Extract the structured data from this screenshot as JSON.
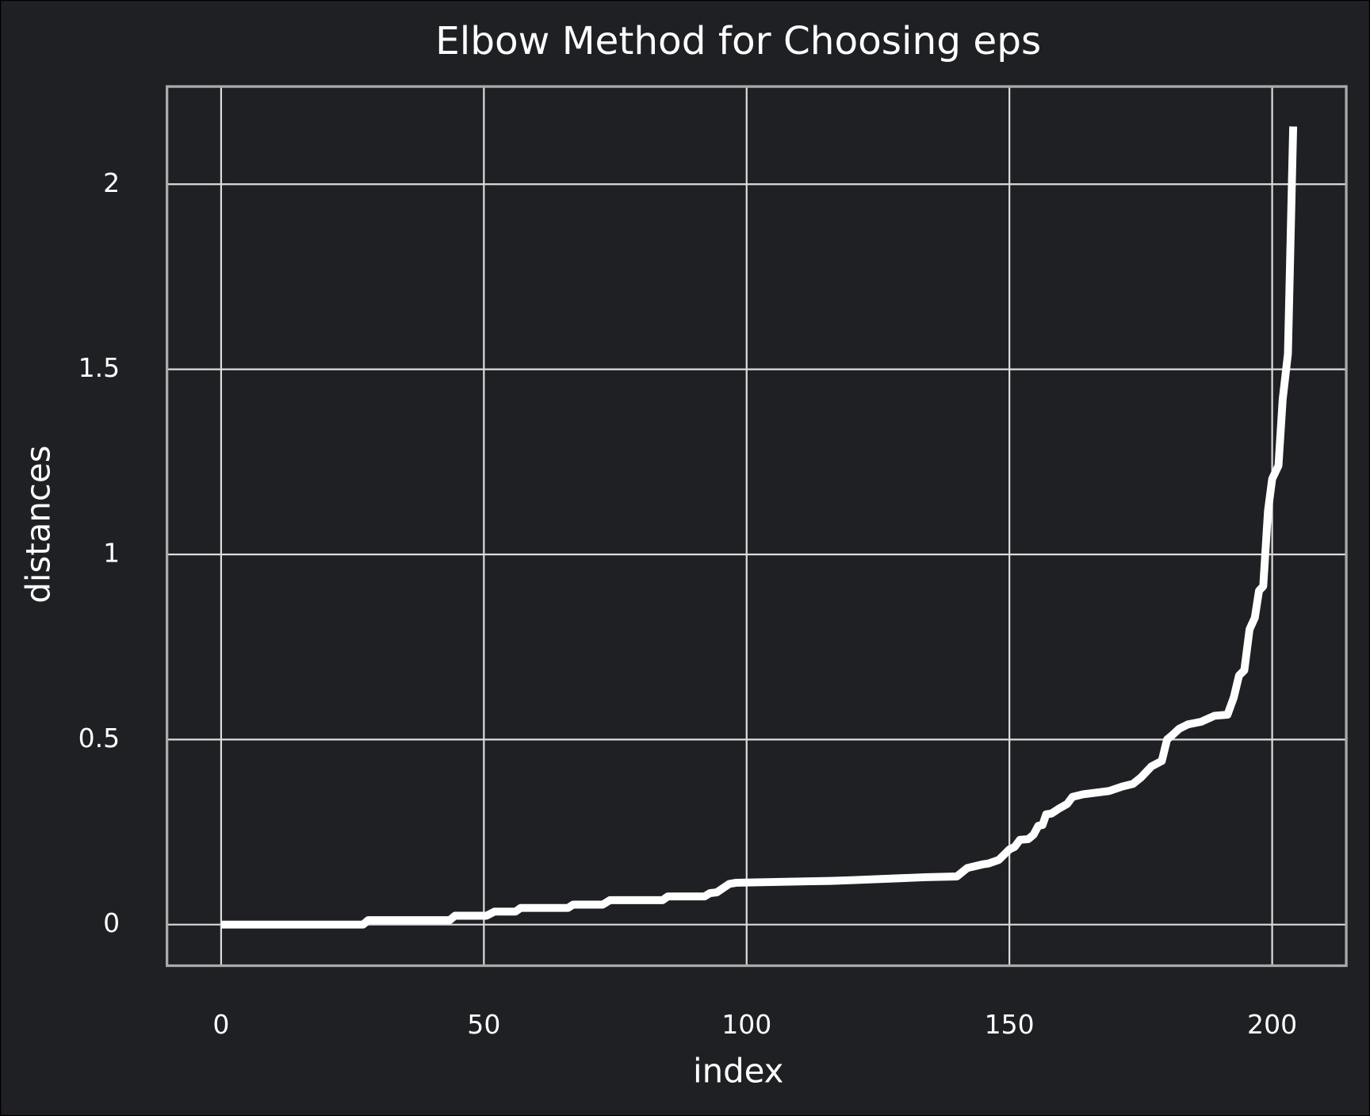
{
  "chart_data": {
    "type": "line",
    "title": "Elbow Method for Choosing eps",
    "x_label": "index",
    "y_label": "distances",
    "x": [
      0,
      27,
      28,
      43.5,
      44.5,
      50.5,
      52,
      56,
      57,
      66,
      67,
      72.6,
      74,
      84,
      85,
      92,
      93,
      94.3,
      96.7,
      98,
      108.4,
      116,
      120,
      134,
      140,
      142,
      145,
      146,
      148,
      150,
      151,
      152,
      153.6,
      154.6,
      155.5,
      156.3,
      157,
      158,
      159.5,
      161,
      162,
      164,
      169,
      171.5,
      173.5,
      175,
      177,
      179,
      180,
      181,
      182.3,
      184,
      186.5,
      189,
      191.5,
      192.7,
      193.7,
      194.7,
      195.7,
      196.7,
      197.5,
      198.3,
      199.2,
      200,
      201.2,
      202,
      203,
      204
    ],
    "values": [
      0,
      0,
      0.012,
      0.012,
      0.024,
      0.024,
      0.035,
      0.035,
      0.045,
      0.045,
      0.054,
      0.054,
      0.066,
      0.066,
      0.076,
      0.076,
      0.085,
      0.087,
      0.11,
      0.113,
      0.116,
      0.118,
      0.12,
      0.128,
      0.13,
      0.153,
      0.163,
      0.165,
      0.175,
      0.203,
      0.21,
      0.229,
      0.231,
      0.243,
      0.267,
      0.269,
      0.298,
      0.3,
      0.314,
      0.326,
      0.345,
      0.352,
      0.361,
      0.373,
      0.38,
      0.397,
      0.427,
      0.442,
      0.5,
      0.512,
      0.529,
      0.541,
      0.548,
      0.564,
      0.567,
      0.614,
      0.673,
      0.687,
      0.798,
      0.829,
      0.902,
      0.914,
      1.117,
      1.204,
      1.24,
      1.419,
      1.542,
      2.156
    ],
    "color": "#ffffff",
    "xlim": [
      -10.3,
      214.1
    ],
    "xticks": [
      0,
      50,
      100,
      150,
      200
    ],
    "ylim": [
      -0.111,
      2.264
    ],
    "yticks": [
      0,
      0.5,
      1,
      1.5,
      2
    ],
    "grid": true
  }
}
